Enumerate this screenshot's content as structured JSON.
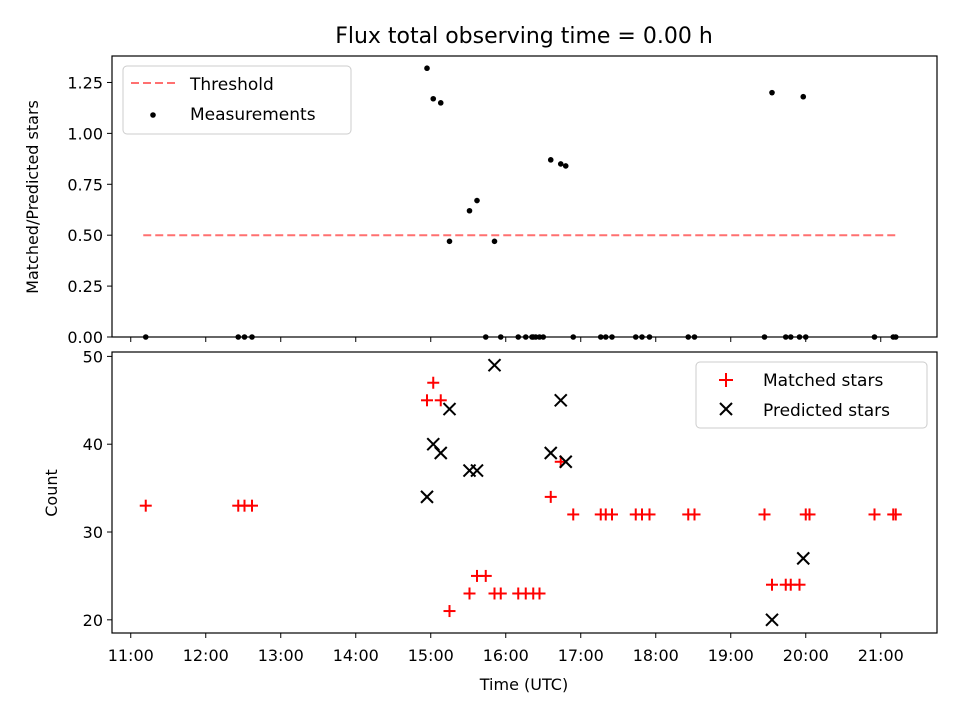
{
  "figure_title": "Flux total observing time = 0.00 h",
  "chart_data": [
    {
      "type": "scatter",
      "ylabel": "Matched/Predicted stars",
      "ylim": [
        0,
        1.38
      ],
      "yticks": [
        "0.00",
        "0.25",
        "0.50",
        "0.75",
        "1.00",
        "1.25"
      ],
      "ytick_values": [
        0,
        0.25,
        0.5,
        0.75,
        1.0,
        1.25
      ],
      "legend": {
        "position": "top-left",
        "entries": [
          "Threshold",
          "Measurements"
        ]
      },
      "threshold": {
        "name": "Threshold",
        "x": [
          "11:10",
          "21:12"
        ],
        "y": 0.5,
        "color": "#ff7070"
      },
      "series": [
        {
          "name": "Measurements",
          "color": "#000000",
          "x": [
            "11:12",
            "12:26",
            "12:31",
            "12:37",
            "14:57",
            "15:02",
            "15:08",
            "15:15",
            "15:31",
            "15:37",
            "15:44",
            "15:51",
            "15:56",
            "16:10",
            "16:16",
            "16:21",
            "16:22",
            "16:24",
            "16:27",
            "16:30",
            "16:36",
            "16:44",
            "16:48",
            "16:54",
            "17:16",
            "17:20",
            "17:25",
            "17:44",
            "17:49",
            "17:55",
            "18:26",
            "18:31",
            "19:27",
            "19:33",
            "19:44",
            "19:48",
            "19:55",
            "19:58",
            "20:00",
            "20:55",
            "21:10",
            "21:12"
          ],
          "y": [
            0,
            0,
            0,
            0,
            1.32,
            1.17,
            1.15,
            0.47,
            0.62,
            0.67,
            0,
            0.47,
            0,
            0,
            0,
            0,
            0,
            0,
            0,
            0,
            0.87,
            0.85,
            0.84,
            0,
            0,
            0,
            0,
            0,
            0,
            0,
            0,
            0,
            0,
            1.2,
            0,
            0,
            0,
            1.18,
            0,
            0,
            0,
            0
          ]
        }
      ]
    },
    {
      "type": "scatter",
      "xlabel": "Time (UTC)",
      "ylabel": "Count",
      "ylim": [
        18.5,
        50.5
      ],
      "yticks": [
        "20",
        "30",
        "40",
        "50"
      ],
      "ytick_values": [
        20,
        30,
        40,
        50
      ],
      "xlim": [
        "10:45",
        "21:45"
      ],
      "xticks": [
        "11:00",
        "12:00",
        "13:00",
        "14:00",
        "15:00",
        "16:00",
        "17:00",
        "18:00",
        "19:00",
        "20:00",
        "21:00"
      ],
      "legend": {
        "position": "top-right",
        "entries": [
          "Matched stars",
          "Predicted stars"
        ]
      },
      "series": [
        {
          "name": "Matched stars",
          "color": "#ff0000",
          "marker": "+",
          "x": [
            "11:12",
            "12:26",
            "12:31",
            "12:37",
            "14:57",
            "15:02",
            "15:08",
            "15:15",
            "15:31",
            "15:37",
            "15:44",
            "15:51",
            "15:56",
            "16:10",
            "16:16",
            "16:22",
            "16:27",
            "16:36",
            "16:44",
            "16:54",
            "17:16",
            "17:20",
            "17:25",
            "17:44",
            "17:49",
            "17:55",
            "18:26",
            "18:31",
            "19:27",
            "19:33",
            "19:44",
            "19:48",
            "19:55",
            "20:00",
            "20:03",
            "20:55",
            "21:10",
            "21:12"
          ],
          "y": [
            33,
            33,
            33,
            33,
            45,
            47,
            45,
            21,
            23,
            25,
            25,
            23,
            23,
            23,
            23,
            23,
            23,
            34,
            38,
            32,
            32,
            32,
            32,
            32,
            32,
            32,
            32,
            32,
            32,
            24,
            24,
            24,
            24,
            32,
            32,
            32,
            32,
            32
          ]
        },
        {
          "name": "Predicted stars",
          "color": "#000000",
          "marker": "x",
          "x": [
            "14:57",
            "15:02",
            "15:08",
            "15:15",
            "15:31",
            "15:37",
            "15:51",
            "16:36",
            "16:44",
            "16:48",
            "19:33",
            "19:58"
          ],
          "y": [
            34,
            40,
            39,
            44,
            37,
            37,
            49,
            39,
            45,
            38,
            20,
            27
          ]
        }
      ]
    }
  ]
}
